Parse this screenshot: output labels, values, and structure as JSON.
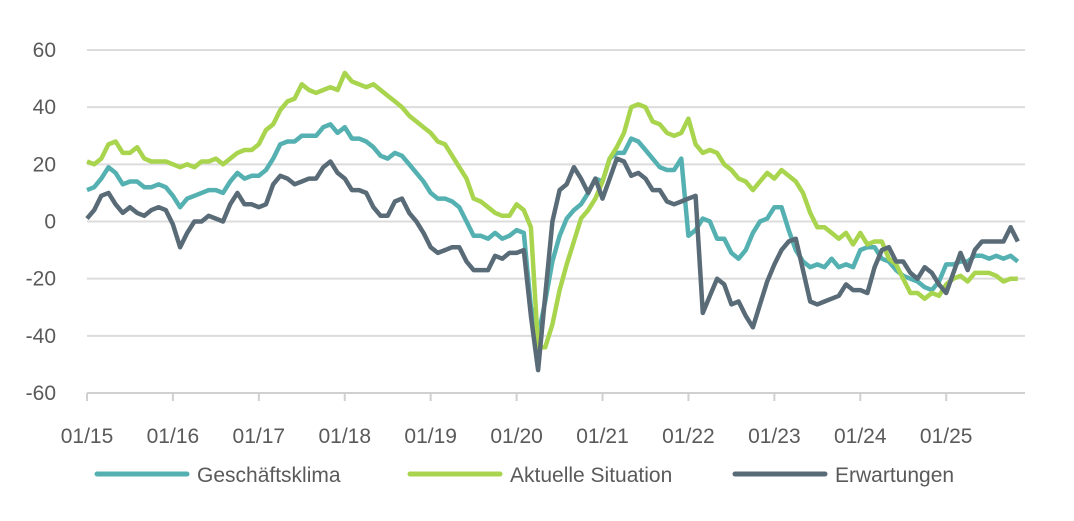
{
  "chart_data": {
    "type": "line",
    "title": "",
    "xlabel": "",
    "ylabel": "",
    "ylim": [
      -60,
      60
    ],
    "yticks": [
      "60",
      "40",
      "20",
      "0",
      "-20",
      "-40",
      "-60"
    ],
    "yticks_values": [
      60,
      40,
      20,
      0,
      -20,
      -40,
      -60
    ],
    "xticks": [
      "01/15",
      "01/16",
      "01/17",
      "01/18",
      "01/19",
      "01/20",
      "01/21",
      "01/22",
      "01/23",
      "01/24",
      "01/25"
    ],
    "x_start": "01/2015",
    "x_frequency": "monthly",
    "grid": true,
    "legend_position": "bottom",
    "series": [
      {
        "name": "Geschäftsklima",
        "color": "#55b1b1",
        "values": [
          11,
          12,
          15,
          19,
          17,
          13,
          14,
          14,
          12,
          12,
          13,
          12,
          9,
          5,
          8,
          9,
          10,
          11,
          11,
          10,
          14,
          17,
          15,
          16,
          16,
          18,
          22,
          27,
          28,
          28,
          30,
          30,
          30,
          33,
          34,
          31,
          33,
          29,
          29,
          28,
          26,
          23,
          22,
          24,
          23,
          20,
          17,
          14,
          10,
          8,
          8,
          7,
          5,
          0,
          -5,
          -5,
          -6,
          -4,
          -6,
          -5,
          -3,
          -4,
          -30,
          -40,
          -28,
          -14,
          -5,
          1,
          4,
          6,
          10,
          15,
          14,
          22,
          24,
          24,
          29,
          28,
          25,
          22,
          19,
          18,
          18,
          22,
          -5,
          -3,
          1,
          0,
          -6,
          -6,
          -11,
          -13,
          -10,
          -4,
          0,
          1,
          5,
          5,
          -3,
          -10,
          -14,
          -16,
          -15,
          -16,
          -13,
          -16,
          -15,
          -16,
          -10,
          -9,
          -9,
          -13,
          -14,
          -17,
          -19,
          -20,
          -21,
          -23,
          -24,
          -21,
          -15,
          -15,
          -14,
          -14,
          -12,
          -12,
          -13,
          -12,
          -13,
          -12,
          -14
        ]
      },
      {
        "name": "Aktuelle Situation",
        "color": "#a8d44e",
        "values": [
          21,
          20,
          22,
          27,
          28,
          24,
          24,
          26,
          22,
          21,
          21,
          21,
          20,
          19,
          20,
          19,
          21,
          21,
          22,
          20,
          22,
          24,
          25,
          25,
          27,
          32,
          34,
          39,
          42,
          43,
          48,
          46,
          45,
          46,
          47,
          46,
          52,
          49,
          48,
          47,
          48,
          46,
          44,
          42,
          40,
          37,
          35,
          33,
          31,
          28,
          27,
          23,
          19,
          15,
          8,
          7,
          5,
          3,
          2,
          2,
          6,
          4,
          -2,
          -44,
          -44,
          -36,
          -24,
          -15,
          -7,
          1,
          4,
          8,
          14,
          22,
          26,
          31,
          40,
          41,
          40,
          35,
          34,
          31,
          30,
          31,
          36,
          27,
          24,
          25,
          24,
          20,
          18,
          15,
          14,
          11,
          14,
          17,
          15,
          18,
          16,
          14,
          10,
          3,
          -2,
          -2,
          -4,
          -6,
          -4,
          -8,
          -4,
          -8,
          -7,
          -7,
          -13,
          -15,
          -20,
          -25,
          -25,
          -27,
          -25,
          -26,
          -22,
          -20,
          -19,
          -21,
          -18,
          -18,
          -18,
          -19,
          -21,
          -20,
          -20
        ]
      },
      {
        "name": "Erwartungen",
        "color": "#5a6b78",
        "values": [
          1,
          4,
          9,
          10,
          6,
          3,
          5,
          3,
          2,
          4,
          5,
          4,
          -1,
          -9,
          -4,
          0,
          0,
          2,
          1,
          0,
          6,
          10,
          6,
          6,
          5,
          6,
          13,
          16,
          15,
          13,
          14,
          15,
          15,
          19,
          21,
          17,
          15,
          11,
          11,
          10,
          5,
          2,
          2,
          7,
          8,
          3,
          0,
          -4,
          -9,
          -11,
          -10,
          -9,
          -9,
          -14,
          -17,
          -17,
          -17,
          -12,
          -13,
          -11,
          -11,
          -10,
          -33,
          -52,
          -26,
          0,
          11,
          13,
          19,
          15,
          10,
          15,
          8,
          15,
          22,
          21,
          16,
          17,
          15,
          11,
          11,
          7,
          6,
          7,
          8,
          9,
          -32,
          -26,
          -20,
          -22,
          -29,
          -28,
          -33,
          -37,
          -29,
          -21,
          -15,
          -10,
          -7,
          -6,
          -17,
          -28,
          -29,
          -28,
          -27,
          -26,
          -22,
          -24,
          -24,
          -25,
          -16,
          -10,
          -9,
          -14,
          -14,
          -18,
          -20,
          -16,
          -18,
          -22,
          -25,
          -18,
          -11,
          -17,
          -10,
          -7,
          -7,
          -7,
          -7,
          -2,
          -7
        ]
      }
    ]
  }
}
